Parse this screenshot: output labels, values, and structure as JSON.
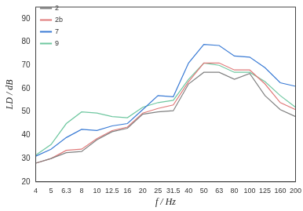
{
  "chart_data": {
    "type": "line",
    "x_label": "f / Hz",
    "y_label": "LD / dB",
    "categories": [
      "4",
      "5",
      "6.3",
      "8",
      "10",
      "12.5",
      "16",
      "20",
      "25",
      "31.5",
      "40",
      "50",
      "63",
      "80",
      "100",
      "125",
      "160",
      "200"
    ],
    "series": [
      {
        "name": "2",
        "color": "#808080",
        "values": [
          28,
          30,
          32.5,
          33,
          38,
          41.5,
          43,
          49,
          50,
          50.5,
          62,
          67,
          67,
          64,
          66.5,
          57,
          51,
          48
        ]
      },
      {
        "name": "2b",
        "color": "#e07a7a",
        "values": [
          28,
          30,
          33.5,
          34,
          38.5,
          42,
          43.5,
          49.5,
          51.5,
          53,
          63,
          71,
          71,
          68,
          68,
          62,
          54,
          51
        ]
      },
      {
        "name": "7",
        "color": "#3a7bd5",
        "values": [
          31,
          34,
          39,
          42.5,
          42,
          44,
          45,
          51,
          57,
          56.5,
          71,
          79,
          78.5,
          74,
          73.5,
          69,
          62.5,
          61
        ]
      },
      {
        "name": "9",
        "color": "#6fc7a0",
        "values": [
          31.5,
          36,
          45,
          50,
          49.5,
          48,
          47.5,
          52,
          54,
          55,
          64,
          71,
          70,
          67,
          67,
          63,
          57,
          52
        ]
      }
    ],
    "ylim": [
      20,
      95
    ],
    "yticks": [
      20,
      30,
      40,
      50,
      60,
      70,
      80,
      90
    ],
    "grid": false,
    "legend": "upper left"
  }
}
